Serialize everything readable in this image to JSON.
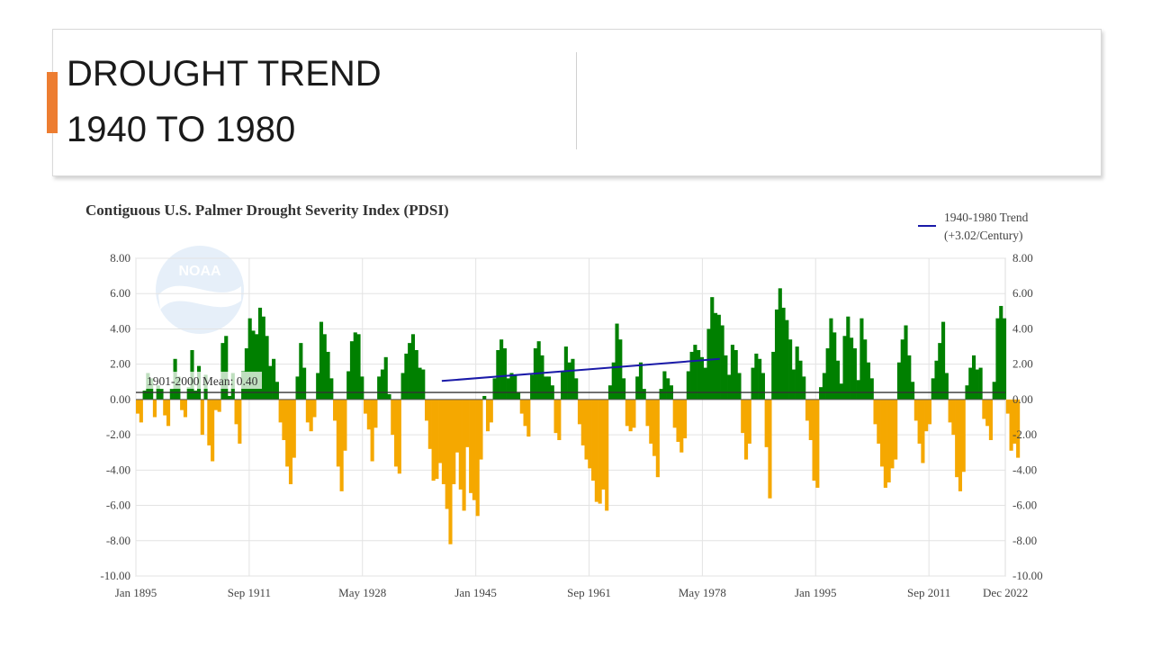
{
  "slide": {
    "title_line1": "DROUGHT TREND",
    "title_line2": "1940 TO 1980",
    "accent_color": "#ed7d31"
  },
  "chart_data": {
    "type": "bar",
    "title": "Contiguous U.S. Palmer Drought Severity Index (PDSI)",
    "x_range": [
      1895.0,
      2022.9
    ],
    "ylim": [
      -10,
      8
    ],
    "yticks": [
      8,
      6,
      4,
      2,
      0,
      -2,
      -4,
      -6,
      -8,
      -10
    ],
    "ytick_labels": [
      "8.00",
      "6.00",
      "4.00",
      "2.00",
      "0.00",
      "-2.00",
      "-4.00",
      "-6.00",
      "-8.00",
      "-10.00"
    ],
    "xticks": [
      {
        "label": "Jan 1895",
        "value": 1895.0
      },
      {
        "label": "Sep 1911",
        "value": 1911.67
      },
      {
        "label": "May 1928",
        "value": 1928.33
      },
      {
        "label": "Jan 1945",
        "value": 1945.0
      },
      {
        "label": "Sep 1961",
        "value": 1961.67
      },
      {
        "label": "May 1978",
        "value": 1978.33
      },
      {
        "label": "Jan 1995",
        "value": 1995.0
      },
      {
        "label": "Sep 2011",
        "value": 2011.67
      },
      {
        "label": "Dec 2022",
        "value": 2022.92
      }
    ],
    "positive_color": "#008000",
    "negative_color": "#f5a800",
    "mean": {
      "label": "1901-2000 Mean: 0.40",
      "value": 0.4
    },
    "trend": {
      "legend_line1": "1940-1980 Trend",
      "legend_line2": "(+3.02/Century)",
      "color": "#1a1aa8",
      "start": {
        "year": 1940.0,
        "value": 1.05
      },
      "end": {
        "year": 1980.9,
        "value": 2.3
      }
    },
    "watermark": "NOAA",
    "grid": true,
    "legend_position": "top-right",
    "values_sampled_every_half_year_from_1895": [
      -0.8,
      -1.3,
      0.5,
      1.5,
      1.2,
      -1.0,
      0.8,
      0.6,
      -0.9,
      -1.5,
      0.6,
      2.3,
      1.3,
      -0.6,
      -1.0,
      0.7,
      2.8,
      0.5,
      1.9,
      -2.0,
      1.4,
      -2.6,
      -3.5,
      -0.6,
      -0.7,
      3.2,
      3.6,
      0.2,
      1.5,
      -1.4,
      -2.5,
      1.6,
      2.9,
      4.6,
      3.9,
      3.7,
      5.2,
      4.7,
      3.6,
      1.9,
      2.3,
      1.0,
      -1.3,
      -2.3,
      -3.8,
      -4.8,
      -3.3,
      1.3,
      3.2,
      1.8,
      -1.3,
      -1.8,
      -1.0,
      1.5,
      4.4,
      3.7,
      2.7,
      1.2,
      -1.2,
      -3.8,
      -5.2,
      -2.9,
      1.6,
      3.3,
      3.8,
      3.7,
      1.3,
      -0.8,
      -1.7,
      -3.5,
      -1.6,
      1.3,
      1.7,
      2.4,
      0.3,
      -2.0,
      -3.8,
      -4.2,
      1.5,
      2.6,
      3.2,
      3.7,
      2.8,
      1.8,
      1.7,
      -1.2,
      -2.8,
      -4.6,
      -4.5,
      -3.6,
      -4.8,
      -6.2,
      -8.2,
      -4.8,
      -3.0,
      -5.1,
      -6.3,
      -2.7,
      -5.3,
      -5.7,
      -6.6,
      -3.4,
      0.2,
      -1.8,
      -1.3,
      1.2,
      2.8,
      3.4,
      2.9,
      1.2,
      1.5,
      1.4,
      0.4,
      -0.8,
      -1.5,
      -2.1,
      1.4,
      2.9,
      3.3,
      2.5,
      1.3,
      1.3,
      0.8,
      -1.9,
      -2.3,
      1.6,
      3.0,
      2.1,
      2.3,
      1.2,
      -1.4,
      -2.6,
      -3.4,
      -3.9,
      -4.6,
      -5.8,
      -5.9,
      -5.1,
      -6.3,
      0.8,
      2.1,
      4.3,
      3.4,
      1.2,
      -1.5,
      -1.8,
      -1.6,
      1.3,
      2.1,
      0.6,
      -1.5,
      -2.5,
      -3.2,
      -4.4,
      0.6,
      1.6,
      1.2,
      0.8,
      -1.6,
      -2.4,
      -3.0,
      -2.2,
      1.6,
      2.7,
      3.1,
      2.8,
      2.4,
      1.8,
      4.0,
      5.8,
      4.9,
      4.8,
      4.2,
      2.5,
      1.4,
      3.1,
      2.8,
      1.5,
      -1.9,
      -3.4,
      -2.5,
      1.8,
      2.6,
      2.3,
      1.5,
      -2.7,
      -5.6,
      2.7,
      5.1,
      6.3,
      5.2,
      4.5,
      3.4,
      1.7,
      3.0,
      2.2,
      1.3,
      -1.2,
      -2.3,
      -4.6,
      -5.0,
      0.7,
      1.5,
      2.9,
      4.6,
      3.8,
      2.2,
      0.9,
      3.6,
      4.7,
      3.5,
      2.9,
      1.1,
      4.6,
      3.4,
      2.1,
      1.2,
      -1.4,
      -2.5,
      -3.8,
      -5.0,
      -4.7,
      -3.9,
      -3.4,
      2.1,
      3.4,
      4.2,
      2.5,
      1.0,
      -1.2,
      -2.5,
      -3.6,
      -1.8,
      -1.4,
      1.2,
      2.2,
      3.2,
      4.4,
      1.5,
      -1.3,
      -2.0,
      -4.4,
      -5.2,
      -4.1,
      0.8,
      1.8,
      2.5,
      1.7,
      1.8,
      -1.1,
      -1.5,
      -2.3,
      1.0,
      4.6,
      5.3,
      4.6,
      -0.8,
      -2.9,
      -2.5,
      -3.3
    ]
  }
}
